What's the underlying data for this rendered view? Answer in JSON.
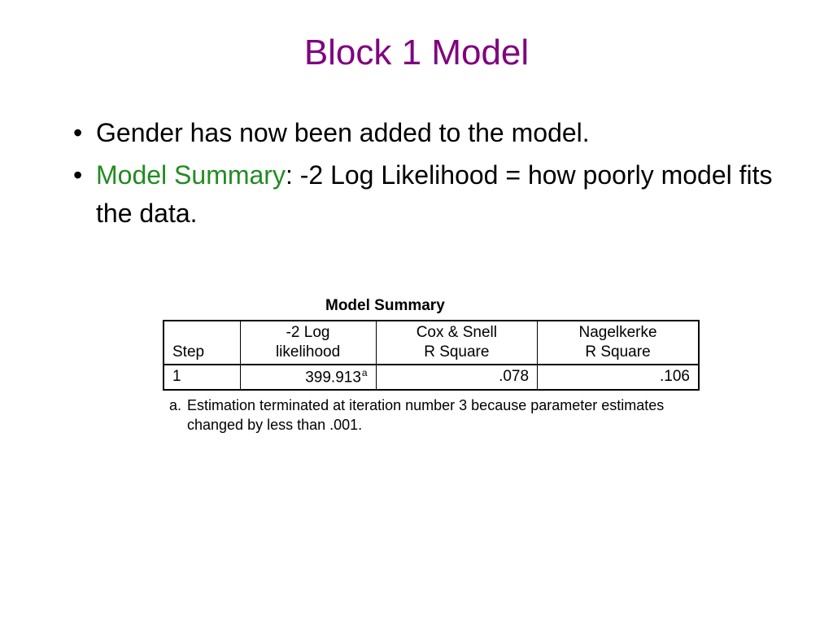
{
  "title": {
    "text": "Block 1 Model",
    "color": "#800080"
  },
  "bullets": [
    {
      "full": "Gender has now been added to the model."
    },
    {
      "highlight": "Model Summary",
      "highlight_color": "#228B22",
      "rest": ":  -2 Log Likelihood = how poorly model fits the data."
    }
  ],
  "table": {
    "caption": "Model Summary",
    "columns": [
      {
        "line1": "",
        "line2": "Step"
      },
      {
        "line1": "-2 Log",
        "line2": "likelihood"
      },
      {
        "line1": "Cox & Snell",
        "line2": "R Square"
      },
      {
        "line1": "Nagelkerke",
        "line2": "R Square"
      }
    ],
    "row": {
      "step": "1",
      "loglik": "399.913",
      "loglik_sup": "a",
      "cox": ".078",
      "nagel": ".106"
    },
    "footnote": {
      "marker": "a.",
      "text": "Estimation terminated at iteration number 3 because parameter estimates changed by less than .001."
    }
  }
}
